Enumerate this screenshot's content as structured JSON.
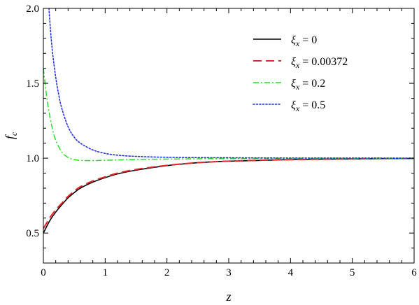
{
  "chart_data": {
    "type": "line",
    "xlabel": "z",
    "ylabel": "f",
    "ylabel_sub": "c",
    "xlim": [
      0,
      6
    ],
    "ylim": [
      0.3,
      2.0
    ],
    "xticks": [
      0,
      1,
      2,
      3,
      4,
      5,
      6
    ],
    "yticks": [
      0.5,
      1.0,
      1.5,
      2.0
    ],
    "ytick_labels": [
      "0.5",
      "1.0",
      "1.5",
      "2.0"
    ],
    "grid": false,
    "legend_position": "top-right",
    "series": [
      {
        "name": "ξx = 0",
        "legend_symbol": "ξ",
        "legend_sub": "x",
        "legend_value": " = 0",
        "color": "#000000",
        "dash": "solid",
        "x": [
          0,
          0.1,
          0.2,
          0.3,
          0.4,
          0.5,
          0.6,
          0.8,
          1.0,
          1.2,
          1.5,
          2.0,
          2.5,
          3.0,
          3.5,
          4.0,
          4.5,
          5.0,
          5.5,
          6.0
        ],
        "y": [
          0.5,
          0.58,
          0.64,
          0.69,
          0.735,
          0.77,
          0.8,
          0.84,
          0.87,
          0.895,
          0.92,
          0.95,
          0.97,
          0.98,
          0.985,
          0.99,
          0.993,
          0.995,
          0.997,
          0.998
        ]
      },
      {
        "name": "ξx = 0.00372",
        "legend_symbol": "ξ",
        "legend_sub": "x",
        "legend_value": " = 0.00372",
        "color": "#e8262a",
        "dash": "dashed",
        "x": [
          0,
          0.1,
          0.2,
          0.3,
          0.4,
          0.5,
          0.6,
          0.8,
          1.0,
          1.2,
          1.5,
          2.0,
          2.5,
          3.0,
          3.5,
          4.0,
          4.5,
          5.0,
          5.5,
          6.0
        ],
        "y": [
          0.53,
          0.6,
          0.655,
          0.7,
          0.745,
          0.78,
          0.81,
          0.848,
          0.875,
          0.9,
          0.925,
          0.952,
          0.97,
          0.98,
          0.986,
          0.99,
          0.993,
          0.995,
          0.997,
          0.998
        ]
      },
      {
        "name": "ξx = 0.2",
        "legend_symbol": "ξ",
        "legend_sub": "x",
        "legend_value": " = 0.2",
        "color": "#22dd22",
        "dash": "dashdot",
        "x": [
          0,
          0.05,
          0.1,
          0.15,
          0.2,
          0.3,
          0.4,
          0.5,
          0.6,
          0.7,
          0.8,
          1.0,
          1.2,
          1.5,
          2.0,
          2.5,
          3.0,
          4.0,
          5.0,
          6.0
        ],
        "y": [
          1.6,
          1.42,
          1.29,
          1.19,
          1.12,
          1.04,
          1.005,
          0.99,
          0.985,
          0.984,
          0.984,
          0.986,
          0.988,
          0.991,
          0.994,
          0.996,
          0.997,
          0.998,
          0.999,
          0.999
        ]
      },
      {
        "name": "ξx = 0.5",
        "legend_symbol": "ξ",
        "legend_sub": "x",
        "legend_value": " = 0.5",
        "color": "#2233dd",
        "dash": "dotted",
        "x": [
          0.09,
          0.12,
          0.15,
          0.2,
          0.25,
          0.3,
          0.4,
          0.5,
          0.6,
          0.8,
          1.0,
          1.2,
          1.5,
          2.0,
          2.5,
          3.0,
          4.0,
          5.0,
          6.0
        ],
        "y": [
          2.0,
          1.83,
          1.7,
          1.54,
          1.42,
          1.33,
          1.21,
          1.14,
          1.1,
          1.055,
          1.032,
          1.02,
          1.012,
          1.006,
          1.004,
          1.003,
          1.001,
          1.001,
          1.0
        ]
      }
    ]
  }
}
